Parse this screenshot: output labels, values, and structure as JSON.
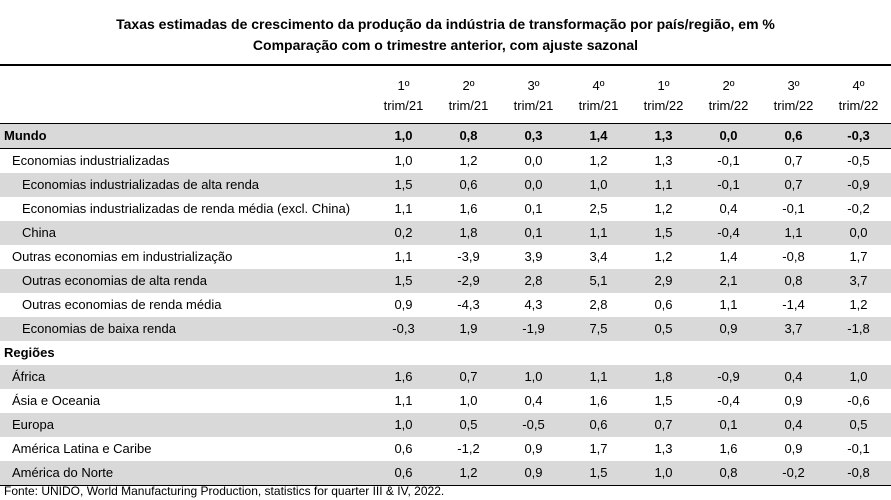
{
  "title": {
    "line1": "Taxas estimadas de crescimento da produção da indústria de transformação por país/região, em %",
    "line2": "Comparação com o trimestre anterior, com ajuste sazonal"
  },
  "table": {
    "columns": [
      {
        "top": "1º",
        "bottom": "trim/21"
      },
      {
        "top": "2º",
        "bottom": "trim/21"
      },
      {
        "top": "3º",
        "bottom": "trim/21"
      },
      {
        "top": "4º",
        "bottom": "trim/21"
      },
      {
        "top": "1º",
        "bottom": "trim/22"
      },
      {
        "top": "2º",
        "bottom": "trim/22"
      },
      {
        "top": "3º",
        "bottom": "trim/22"
      },
      {
        "top": "4º",
        "bottom": "trim/22"
      }
    ],
    "rows": [
      {
        "label": "Mundo",
        "values": [
          "1,0",
          "0,8",
          "0,3",
          "1,4",
          "1,3",
          "0,0",
          "0,6",
          "-0,3"
        ]
      },
      {
        "label": "Economias industrializadas",
        "values": [
          "1,0",
          "1,2",
          "0,0",
          "1,2",
          "1,3",
          "-0,1",
          "0,7",
          "-0,5"
        ]
      },
      {
        "label": "Economias industrializadas de alta renda",
        "values": [
          "1,5",
          "0,6",
          "0,0",
          "1,0",
          "1,1",
          "-0,1",
          "0,7",
          "-0,9"
        ]
      },
      {
        "label": "Economias industrializadas de renda média (excl. China)",
        "values": [
          "1,1",
          "1,6",
          "0,1",
          "2,5",
          "1,2",
          "0,4",
          "-0,1",
          "-0,2"
        ]
      },
      {
        "label": "China",
        "values": [
          "0,2",
          "1,8",
          "0,1",
          "1,1",
          "1,5",
          "-0,4",
          "1,1",
          "0,0"
        ]
      },
      {
        "label": "Outras economias em industrialização",
        "values": [
          "1,1",
          "-3,9",
          "3,9",
          "3,4",
          "1,2",
          "1,4",
          "-0,8",
          "1,7"
        ]
      },
      {
        "label": "Outras economias de alta renda",
        "values": [
          "1,5",
          "-2,9",
          "2,8",
          "5,1",
          "2,9",
          "2,1",
          "0,8",
          "3,7"
        ]
      },
      {
        "label": "Outras economias de renda média",
        "values": [
          "0,9",
          "-4,3",
          "4,3",
          "2,8",
          "0,6",
          "1,1",
          "-1,4",
          "1,2"
        ]
      },
      {
        "label": "Economias de baixa renda",
        "values": [
          "-0,3",
          "1,9",
          "-1,9",
          "7,5",
          "0,5",
          "0,9",
          "3,7",
          "-1,8"
        ]
      },
      {
        "label": "Regiões",
        "values": []
      },
      {
        "label": "África",
        "values": [
          "1,6",
          "0,7",
          "1,0",
          "1,1",
          "1,8",
          "-0,9",
          "0,4",
          "1,0"
        ]
      },
      {
        "label": "Ásia e Oceania",
        "values": [
          "1,1",
          "1,0",
          "0,4",
          "1,6",
          "1,5",
          "-0,4",
          "0,9",
          "-0,6"
        ]
      },
      {
        "label": "Europa",
        "values": [
          "1,0",
          "0,5",
          "-0,5",
          "0,6",
          "0,7",
          "0,1",
          "0,4",
          "0,5"
        ]
      },
      {
        "label": "América Latina e Caribe",
        "values": [
          "0,6",
          "-1,2",
          "0,9",
          "1,7",
          "1,3",
          "1,6",
          "0,9",
          "-0,1"
        ]
      },
      {
        "label": "América do Norte",
        "values": [
          "0,6",
          "1,2",
          "0,9",
          "1,5",
          "1,0",
          "0,8",
          "-0,2",
          "-0,8"
        ]
      }
    ]
  },
  "footnote": "Fonte: UNIDO, World Manufacturing Production, statistics for quarter III & IV, 2022.",
  "colors": {
    "row_shade": "#d9d9d9",
    "rule": "#000000"
  }
}
